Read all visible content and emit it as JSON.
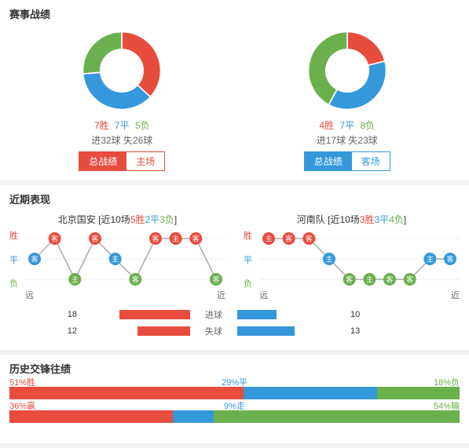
{
  "colors": {
    "red": "#e84c3d",
    "blue": "#3498db",
    "green": "#6ab04c",
    "grey": "#aaaaaa",
    "bg": "#ffffff"
  },
  "panel1": {
    "title": "赛事战绩",
    "left": {
      "donut": {
        "slices": [
          {
            "value": 7,
            "color": "#e84c3d"
          },
          {
            "value": 7,
            "color": "#3498db"
          },
          {
            "value": 5,
            "color": "#6ab04c"
          }
        ],
        "hole": 0.55
      },
      "win": "7胜",
      "draw": "7平",
      "lose": "5负",
      "goals": "进32球 失26球",
      "tab_active": "总战绩",
      "tab_inactive": "主场",
      "tab_color": "#e84c3d"
    },
    "right": {
      "donut": {
        "slices": [
          {
            "value": 4,
            "color": "#e84c3d"
          },
          {
            "value": 7,
            "color": "#3498db"
          },
          {
            "value": 8,
            "color": "#6ab04c"
          }
        ],
        "hole": 0.55
      },
      "win": "4胜",
      "draw": "7平",
      "lose": "8负",
      "goals": "进17球 失23球",
      "tab_active": "总战绩",
      "tab_inactive": "客场",
      "tab_color": "#3498db"
    }
  },
  "panel2": {
    "title": "近期表现",
    "y_labels": [
      "胜",
      "平",
      "负"
    ],
    "x_labels": [
      "远",
      "近"
    ],
    "left": {
      "team": "北京国安",
      "summary_prefix": "[近10场",
      "summary_win": "5胜",
      "summary_draw": "2平",
      "summary_lose": "3负",
      "summary_suffix": "]",
      "points": [
        {
          "result": 1,
          "venue": "客"
        },
        {
          "result": 2,
          "venue": "客"
        },
        {
          "result": 0,
          "venue": "主"
        },
        {
          "result": 2,
          "venue": "客"
        },
        {
          "result": 1,
          "venue": "主"
        },
        {
          "result": 0,
          "venue": "客"
        },
        {
          "result": 2,
          "venue": "客"
        },
        {
          "result": 2,
          "venue": "主"
        },
        {
          "result": 2,
          "venue": "客"
        },
        {
          "result": 0,
          "venue": "客"
        }
      ]
    },
    "right": {
      "team": "河南队",
      "summary_prefix": "[近10场",
      "summary_win": "3胜",
      "summary_draw": "3平",
      "summary_lose": "4负",
      "summary_suffix": "]",
      "points": [
        {
          "result": 2,
          "venue": "主"
        },
        {
          "result": 2,
          "venue": "客"
        },
        {
          "result": 2,
          "venue": "客"
        },
        {
          "result": 1,
          "venue": "主"
        },
        {
          "result": 0,
          "venue": "客"
        },
        {
          "result": 0,
          "venue": "主"
        },
        {
          "result": 0,
          "venue": "客"
        },
        {
          "result": 0,
          "venue": "客"
        },
        {
          "result": 1,
          "venue": "主"
        },
        {
          "result": 1,
          "venue": "客"
        }
      ]
    },
    "goals_compare": [
      {
        "left_val": "18",
        "left_pct": 64,
        "label": "进球",
        "right_val": "10",
        "right_pct": 36
      },
      {
        "left_val": "12",
        "left_pct": 48,
        "label": "失球",
        "right_val": "13",
        "right_pct": 52
      }
    ],
    "left_bar_color": "#e84c3d",
    "right_bar_color": "#3498db"
  },
  "panel3": {
    "title": "历史交锋往绩",
    "rows": [
      {
        "win_pct": 51,
        "draw_pct": 29,
        "lose_pct": 18,
        "win_lab": "51%胜",
        "draw_lab": "29%平",
        "lose_lab": "18%负"
      },
      {
        "win_pct": 36,
        "draw_pct": 9,
        "lose_pct": 54,
        "win_lab": "36%赢",
        "draw_lab": "9%走",
        "lose_lab": "54%输"
      }
    ]
  }
}
